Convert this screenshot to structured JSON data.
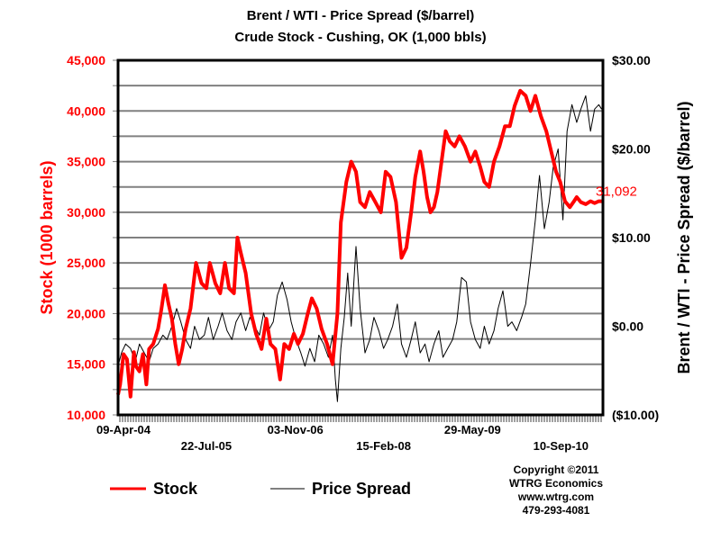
{
  "colors": {
    "stock": "#ff0000",
    "spread": "#000000",
    "grid": "#808080",
    "frame": "#000000"
  },
  "chart_data": {
    "type": "line",
    "title": "Brent / WTI - Price Spread ($/barrel)",
    "subtitle": "Crude Stock - Cushing, OK (1,000 bbls)",
    "ylabel_left": "Stock (1000 barrels)",
    "ylabel_right": "Brent / WTI - Price Spread ($/barrel)",
    "ylim_left": [
      10000,
      45000
    ],
    "ylim_right": [
      -10,
      30
    ],
    "xlim": [
      2004.27,
      2011.3
    ],
    "grid": true,
    "yticks_left": [
      "10,000",
      "15,000",
      "20,000",
      "25,000",
      "30,000",
      "35,000",
      "40,000",
      "45,000"
    ],
    "yticks_right": [
      "($10.00)",
      "$0.00",
      "$10.00",
      "$20.00",
      "$30.00"
    ],
    "xticks": [
      {
        "label": "09-Apr-04",
        "t": 2004.27,
        "row": 1
      },
      {
        "label": "22-Jul-05",
        "t": 2005.55,
        "row": 2
      },
      {
        "label": "03-Nov-06",
        "t": 2006.84,
        "row": 1
      },
      {
        "label": "15-Feb-08",
        "t": 2008.12,
        "row": 2
      },
      {
        "label": "29-May-09",
        "t": 2009.41,
        "row": 1
      },
      {
        "label": "10-Sep-10",
        "t": 2010.69,
        "row": 2
      }
    ],
    "legend": [
      {
        "name": "Stock",
        "axis": "left"
      },
      {
        "name": "Price Spread",
        "axis": "right"
      }
    ],
    "legend_position": "bottom",
    "annotation": {
      "text": "31,092",
      "series": "Stock"
    },
    "series": [
      {
        "name": "Stock",
        "axis": "left",
        "x": [
          2004.27,
          2004.3,
          2004.35,
          2004.4,
          2004.45,
          2004.5,
          2004.53,
          2004.58,
          2004.63,
          2004.68,
          2004.72,
          2004.78,
          2004.85,
          2004.9,
          2004.95,
          2005.0,
          2005.05,
          2005.1,
          2005.15,
          2005.2,
          2005.25,
          2005.32,
          2005.4,
          2005.48,
          2005.55,
          2005.6,
          2005.68,
          2005.75,
          2005.82,
          2005.88,
          2005.95,
          2006.0,
          2006.05,
          2006.12,
          2006.2,
          2006.27,
          2006.35,
          2006.42,
          2006.48,
          2006.55,
          2006.62,
          2006.68,
          2006.75,
          2006.82,
          2006.88,
          2006.95,
          2007.02,
          2007.08,
          2007.15,
          2007.22,
          2007.3,
          2007.38,
          2007.45,
          2007.5,
          2007.58,
          2007.65,
          2007.72,
          2007.78,
          2007.85,
          2007.92,
          2008.0,
          2008.08,
          2008.15,
          2008.22,
          2008.3,
          2008.38,
          2008.45,
          2008.52,
          2008.58,
          2008.65,
          2008.7,
          2008.75,
          2008.8,
          2008.85,
          2008.9,
          2008.96,
          2009.02,
          2009.08,
          2009.15,
          2009.22,
          2009.3,
          2009.38,
          2009.45,
          2009.52,
          2009.58,
          2009.65,
          2009.72,
          2009.8,
          2009.88,
          2009.95,
          2010.02,
          2010.1,
          2010.18,
          2010.25,
          2010.32,
          2010.4,
          2010.48,
          2010.55,
          2010.62,
          2010.68,
          2010.75,
          2010.82,
          2010.88,
          2010.92,
          2010.98,
          2011.05,
          2011.12,
          2011.18,
          2011.24,
          2011.28
        ],
        "values": [
          12000,
          13000,
          16000,
          15500,
          11800,
          16200,
          14800,
          14300,
          16000,
          13000,
          16500,
          17000,
          18500,
          20500,
          22800,
          21000,
          19500,
          17000,
          15000,
          16500,
          18500,
          20500,
          25000,
          23000,
          22500,
          25000,
          23000,
          22000,
          25000,
          22500,
          22000,
          27500,
          26000,
          24000,
          20000,
          18000,
          16500,
          19500,
          17000,
          16500,
          13500,
          17000,
          16500,
          18000,
          17000,
          18000,
          20000,
          21500,
          20500,
          18500,
          17000,
          15000,
          20000,
          29000,
          33000,
          35000,
          34000,
          31000,
          30500,
          32000,
          31000,
          30000,
          34000,
          33500,
          31000,
          25500,
          26500,
          30000,
          33500,
          36000,
          34000,
          31500,
          30000,
          30500,
          32000,
          35000,
          38000,
          37000,
          36500,
          37500,
          36500,
          35000,
          36000,
          34500,
          33000,
          32500,
          35000,
          36500,
          38500,
          38500,
          40500,
          42000,
          41500,
          40000,
          41500,
          39500,
          38000,
          36000,
          34000,
          33000,
          31092,
          30500,
          31092,
          31500,
          31000,
          30800,
          31092,
          30900,
          31092,
          31092
        ],
        "color_key": "stock"
      },
      {
        "name": "Price Spread",
        "axis": "right",
        "x": [
          2004.27,
          2004.32,
          2004.38,
          2004.45,
          2004.52,
          2004.58,
          2004.65,
          2004.72,
          2004.78,
          2004.85,
          2004.92,
          2004.98,
          2005.05,
          2005.12,
          2005.18,
          2005.25,
          2005.32,
          2005.38,
          2005.45,
          2005.52,
          2005.58,
          2005.65,
          2005.72,
          2005.78,
          2005.85,
          2005.92,
          2005.98,
          2006.05,
          2006.12,
          2006.18,
          2006.25,
          2006.32,
          2006.38,
          2006.45,
          2006.52,
          2006.58,
          2006.65,
          2006.72,
          2006.78,
          2006.85,
          2006.92,
          2006.98,
          2007.05,
          2007.12,
          2007.18,
          2007.25,
          2007.32,
          2007.38,
          2007.42,
          2007.45,
          2007.5,
          2007.55,
          2007.6,
          2007.65,
          2007.72,
          2007.78,
          2007.85,
          2007.92,
          2007.98,
          2008.05,
          2008.12,
          2008.18,
          2008.25,
          2008.32,
          2008.38,
          2008.45,
          2008.52,
          2008.58,
          2008.65,
          2008.72,
          2008.78,
          2008.85,
          2008.92,
          2008.98,
          2009.05,
          2009.12,
          2009.18,
          2009.25,
          2009.32,
          2009.38,
          2009.45,
          2009.52,
          2009.58,
          2009.65,
          2009.72,
          2009.78,
          2009.85,
          2009.92,
          2009.98,
          2010.05,
          2010.12,
          2010.18,
          2010.25,
          2010.32,
          2010.38,
          2010.45,
          2010.52,
          2010.58,
          2010.65,
          2010.72,
          2010.78,
          2010.85,
          2010.92,
          2010.98,
          2011.05,
          2011.12,
          2011.18,
          2011.24,
          2011.28
        ],
        "values": [
          -4.5,
          -3.0,
          -2.0,
          -2.5,
          -4.0,
          -2.0,
          -3.0,
          -4.0,
          -2.5,
          -2.0,
          -1.0,
          -1.5,
          0.0,
          2.0,
          0.5,
          -1.5,
          -2.5,
          0.0,
          -1.5,
          -1.0,
          1.0,
          -1.5,
          0.0,
          1.5,
          -0.5,
          -1.5,
          0.5,
          1.5,
          -0.5,
          1.0,
          0.0,
          -1.0,
          1.5,
          -0.5,
          0.5,
          3.5,
          5.0,
          3.0,
          0.5,
          -1.5,
          -3.0,
          -4.5,
          -2.5,
          -4.0,
          -1.0,
          -2.0,
          -3.5,
          -1.0,
          -6.0,
          -8.5,
          -2.5,
          1.0,
          6.0,
          0.0,
          9.0,
          2.0,
          -3.0,
          -1.5,
          1.0,
          -0.5,
          -2.5,
          -1.5,
          0.0,
          2.5,
          -2.0,
          -3.5,
          -1.5,
          0.5,
          -3.0,
          -2.0,
          -4.0,
          -2.0,
          -0.5,
          -3.5,
          -2.5,
          -1.5,
          0.5,
          5.5,
          5.0,
          0.5,
          -1.5,
          -2.5,
          0.0,
          -2.0,
          -0.5,
          2.0,
          4.0,
          0.0,
          0.5,
          -0.5,
          1.0,
          2.5,
          7.0,
          12.0,
          17.0,
          11.0,
          14.0,
          18.0,
          20.0,
          12.0,
          22.0,
          25.0,
          23.0,
          24.5,
          26.0,
          22.0,
          24.5,
          25.0,
          24.5
        ],
        "color_key": "spread"
      }
    ]
  },
  "copyright": {
    "line1": "Copyright  ©2011",
    "line2": "WTRG Economics",
    "line3": "www.wtrg.com",
    "line4": "479-293-4081"
  }
}
